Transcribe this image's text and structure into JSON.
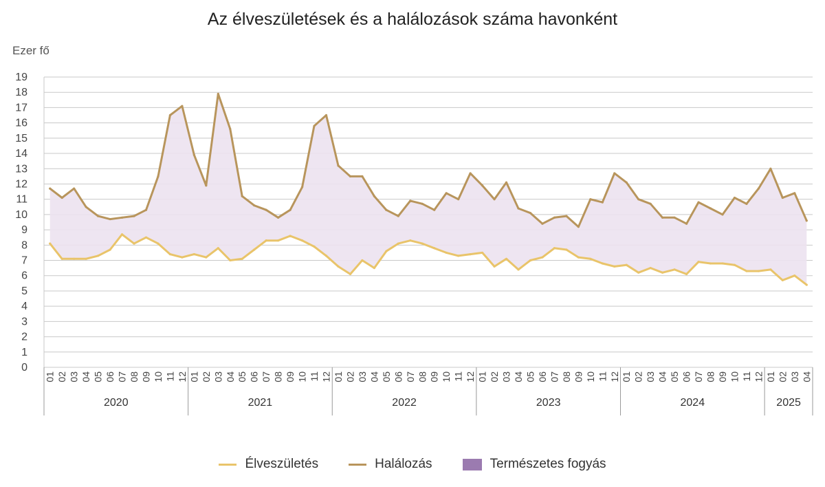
{
  "chart_data": {
    "type": "line",
    "title": "Az élveszületések és a halálozások száma havonként",
    "ylabel": "Ezer fő",
    "xlabel": "",
    "ylim": [
      0,
      19
    ],
    "y_ticks": [
      0,
      1,
      2,
      3,
      4,
      5,
      6,
      7,
      8,
      9,
      10,
      11,
      12,
      13,
      14,
      15,
      16,
      17,
      18,
      19
    ],
    "grid": "horizontal",
    "legend_position": "bottom",
    "years": [
      {
        "label": "2020",
        "months": 12
      },
      {
        "label": "2021",
        "months": 12
      },
      {
        "label": "2022",
        "months": 12
      },
      {
        "label": "2023",
        "months": 12
      },
      {
        "label": "2024",
        "months": 12
      },
      {
        "label": "2025",
        "months": 4
      }
    ],
    "month_labels": [
      "01",
      "02",
      "03",
      "04",
      "05",
      "06",
      "07",
      "08",
      "09",
      "10",
      "11",
      "12"
    ],
    "series": [
      {
        "name": "Élveszületés",
        "color": "#e9c46a",
        "values": [
          8.1,
          7.1,
          7.1,
          7.1,
          7.3,
          7.7,
          8.7,
          8.1,
          8.5,
          8.1,
          7.4,
          7.2,
          7.4,
          7.2,
          7.8,
          7.0,
          7.1,
          7.7,
          8.3,
          8.3,
          8.6,
          8.3,
          7.9,
          7.3,
          6.6,
          6.1,
          7.0,
          6.5,
          7.6,
          8.1,
          8.3,
          8.1,
          7.8,
          7.5,
          7.3,
          7.4,
          7.5,
          6.6,
          7.1,
          6.4,
          7.0,
          7.2,
          7.8,
          7.7,
          7.2,
          7.1,
          6.8,
          6.6,
          6.7,
          6.2,
          6.5,
          6.2,
          6.4,
          6.1,
          6.9,
          6.8,
          6.8,
          6.7,
          6.3,
          6.3,
          6.4,
          5.7,
          6.0,
          5.4
        ]
      },
      {
        "name": "Halálozás",
        "color": "#b8955c",
        "values": [
          11.7,
          11.1,
          11.7,
          10.5,
          9.9,
          9.7,
          9.8,
          9.9,
          10.3,
          12.5,
          16.5,
          17.1,
          13.9,
          11.9,
          17.9,
          15.6,
          11.2,
          10.6,
          10.3,
          9.8,
          10.3,
          11.8,
          15.8,
          16.5,
          13.2,
          12.5,
          12.5,
          11.2,
          10.3,
          9.9,
          10.9,
          10.7,
          10.3,
          11.4,
          11.0,
          12.7,
          11.9,
          11.0,
          12.1,
          10.4,
          10.1,
          9.4,
          9.8,
          9.9,
          9.2,
          11.0,
          10.8,
          12.7,
          12.1,
          11.0,
          10.7,
          9.8,
          9.8,
          9.4,
          10.8,
          10.4,
          10.0,
          11.1,
          10.7,
          11.7,
          13.0,
          11.1,
          11.4,
          9.6
        ]
      },
      {
        "name": "Természetes fogyás",
        "color": "#9b7bb0",
        "kind": "area-between"
      }
    ]
  }
}
